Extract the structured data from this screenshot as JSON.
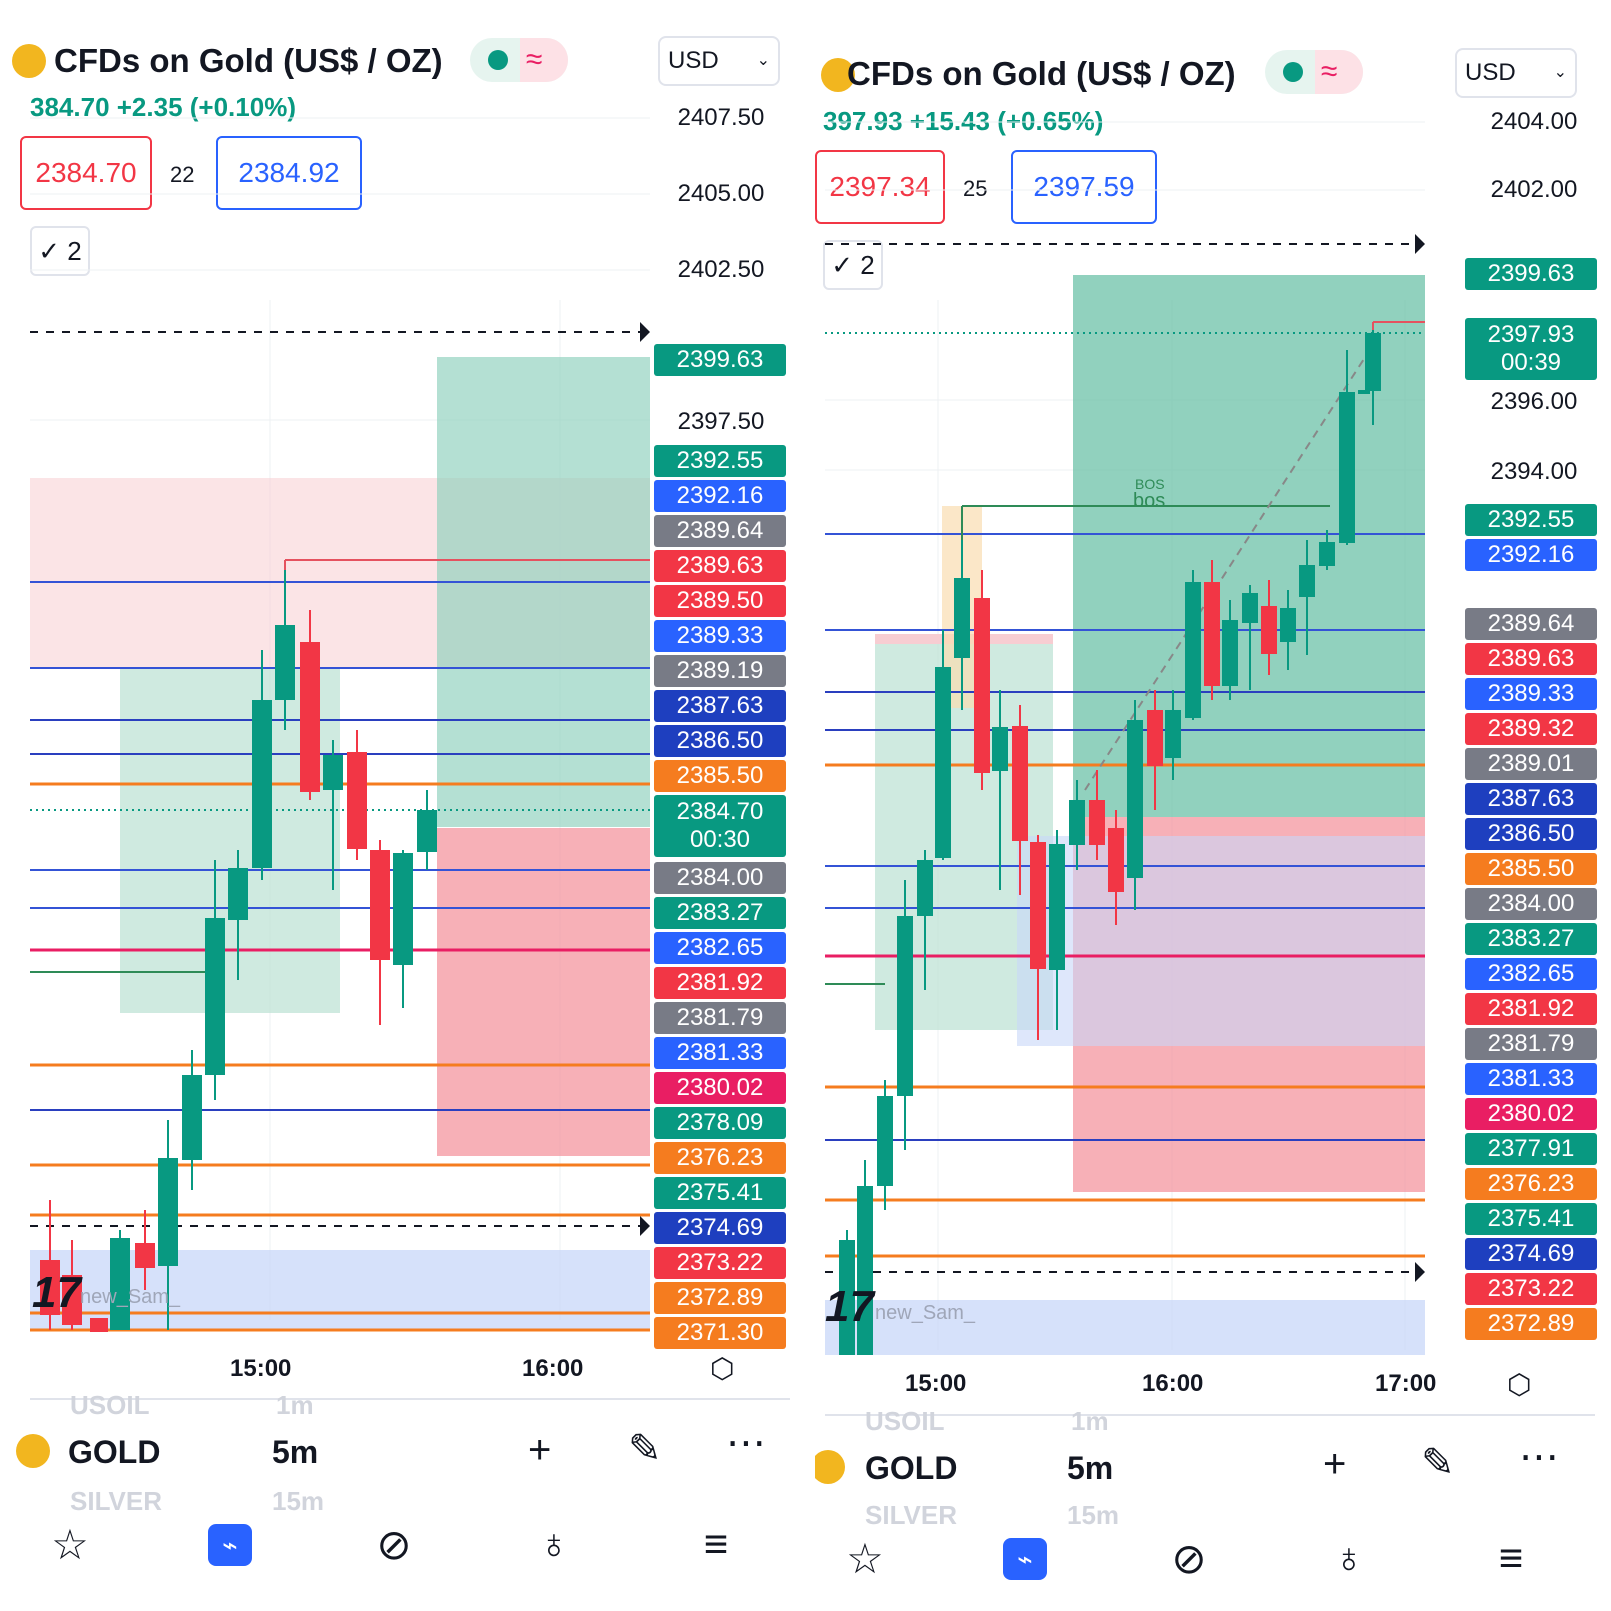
{
  "panels": [
    {
      "symbol_title": "CFDs on Gold (US$ / OZ)",
      "currency": "USD",
      "price_change": "384.70  +2.35 (+0.10%)",
      "bid": "2384.70",
      "spread": "22",
      "ask": "2384.92",
      "open_orders": "2",
      "axis_labels": [
        "2407.50",
        "2405.00",
        "2402.50",
        "2397.50"
      ],
      "price_tags": [
        "2399.63",
        "2392.55",
        "2392.16",
        "2389.64",
        "2389.63",
        "2389.50",
        "2389.33",
        "2389.19",
        "2387.63",
        "2386.50",
        "2385.50",
        "2384.70",
        "2384.00",
        "2383.27",
        "2382.65",
        "2381.92",
        "2381.79",
        "2381.33",
        "2380.02",
        "2378.09",
        "2376.23",
        "2375.41",
        "2374.69",
        "2373.22",
        "2372.89",
        "2371.30"
      ],
      "countdown": "00:30",
      "time_labels": [
        "15:00",
        "16:00"
      ],
      "watermark": "new_Sam_",
      "watchlist": {
        "prev": "USOIL",
        "prev_tf": "1m",
        "current": "GOLD",
        "current_tf": "5m",
        "next": "SILVER",
        "next_tf": "15m"
      },
      "nav": [
        "Watchlist",
        "Chart",
        "Explore",
        "Ideas",
        "Menu"
      ]
    },
    {
      "symbol_title": "CFDs on Gold (US$ / OZ)",
      "currency": "USD",
      "price_change": "397.93  +15.43 (+0.65%)",
      "bid": "2397.34",
      "spread": "25",
      "ask": "2397.59",
      "open_orders": "2",
      "axis_labels": [
        "2404.00",
        "2402.00",
        "2396.00",
        "2394.00"
      ],
      "price_tags": [
        "2399.63",
        "2397.93",
        "2392.55",
        "2392.16",
        "2389.64",
        "2389.63",
        "2389.33",
        "2389.32",
        "2389.01",
        "2387.63",
        "2386.50",
        "2385.50",
        "2384.00",
        "2383.27",
        "2382.65",
        "2381.92",
        "2381.79",
        "2381.33",
        "2380.02",
        "2377.91",
        "2376.23",
        "2375.41",
        "2374.69",
        "2373.22",
        "2372.89"
      ],
      "countdown": "00:39",
      "time_labels": [
        "15:00",
        "16:00",
        "17:00"
      ],
      "bos_labels": [
        "BOS",
        "bos"
      ],
      "watermark": "new_Sam_",
      "watchlist": {
        "prev": "USOIL",
        "prev_tf": "1m",
        "current": "GOLD",
        "current_tf": "5m",
        "next": "SILVER",
        "next_tf": "15m"
      },
      "nav": [
        "Watchlist",
        "Chart",
        "Explore",
        "Ideas",
        "Menu"
      ]
    }
  ],
  "colors": {
    "up": "#089981",
    "down": "#f23645",
    "blue_line": "#2a3fbf",
    "orange_line": "#f57c1f",
    "red_line": "#e91e63",
    "tag_green": "#089981",
    "tag_blue": "#2962ff",
    "tag_darkblue": "#1e3fbf",
    "tag_gray": "#787b86",
    "tag_red": "#f23645",
    "tag_orange": "#f57c1f",
    "tag_pink": "#e91e63"
  }
}
